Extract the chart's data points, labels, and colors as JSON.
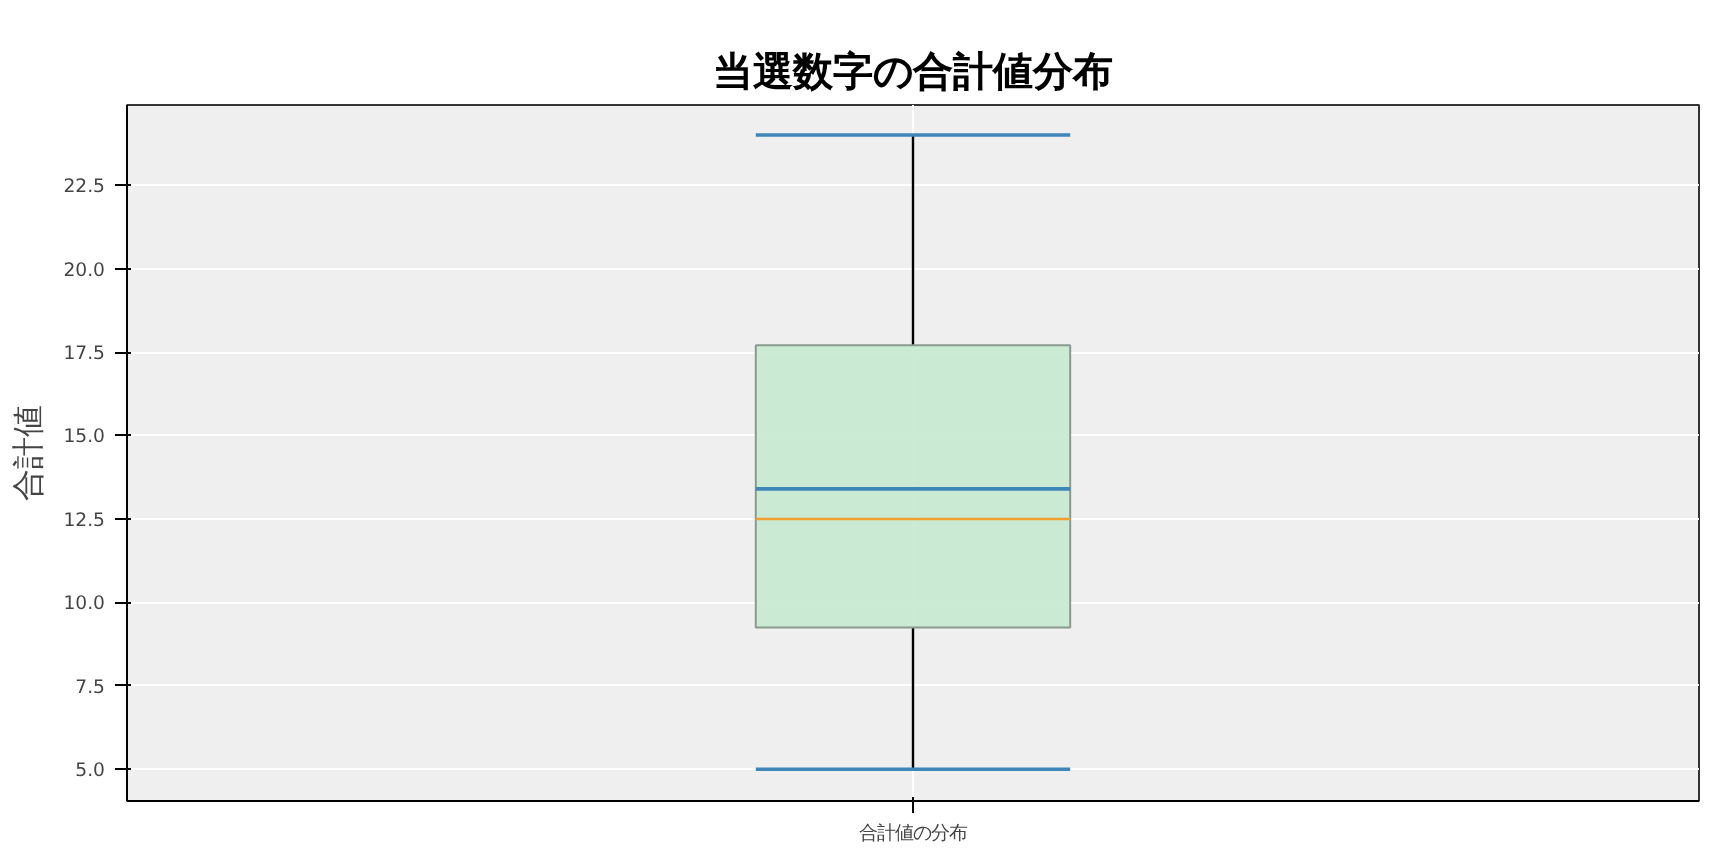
{
  "chart_data": {
    "type": "box",
    "title": "当選数字の合計値分布",
    "ylabel": "合計値",
    "categories": [
      "合計値の分布"
    ],
    "boxes": [
      {
        "low": 5,
        "q1": 9.25,
        "median": 12.5,
        "q3": 17.7,
        "high": 24,
        "mean": 13.4
      }
    ],
    "color": "#c5e9d0",
    "ylim": [
      4.05,
      24.9
    ],
    "yticks": [
      {
        "value": 5,
        "label": "5.0"
      },
      {
        "value": 7.5,
        "label": "7.5"
      },
      {
        "value": 10,
        "label": "10.0"
      },
      {
        "value": 12.5,
        "label": "12.5"
      },
      {
        "value": 15,
        "label": "15.0"
      },
      {
        "value": 17.5,
        "label": "17.5"
      },
      {
        "value": 20,
        "label": "20.0"
      },
      {
        "value": 22.5,
        "label": "22.5"
      }
    ],
    "grid": true
  }
}
